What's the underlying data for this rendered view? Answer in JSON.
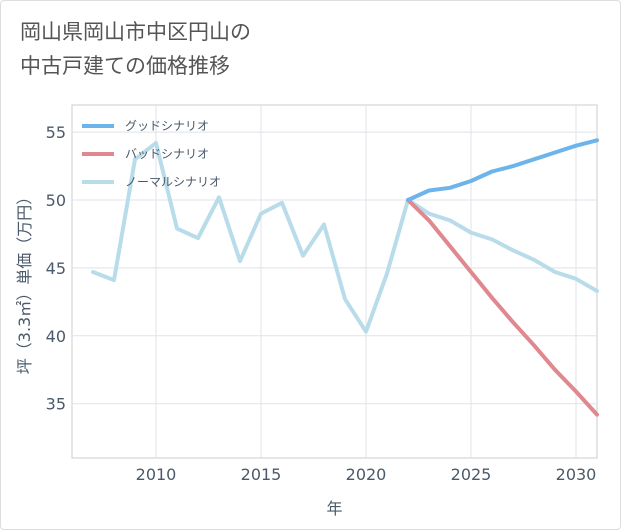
{
  "title": "岡山県岡山市中区円山の\n中古戸建ての価格推移",
  "chart_data": {
    "type": "line",
    "xlabel": "年",
    "ylabel": "坪（3.3㎡）単価（万円）",
    "xlim": [
      2006,
      2031
    ],
    "ylim": [
      31,
      57
    ],
    "x_ticks": [
      2010,
      2015,
      2020,
      2025,
      2030
    ],
    "y_ticks": [
      35,
      40,
      45,
      50,
      55
    ],
    "grid": true,
    "legend_position": "top-left",
    "series": [
      {
        "name": "グッドシナリオ",
        "color": "#6cb4ea",
        "x": [
          2022,
          2023,
          2024,
          2025,
          2026,
          2027,
          2028,
          2029,
          2030,
          2031
        ],
        "y": [
          50.0,
          50.7,
          50.9,
          51.4,
          52.1,
          52.5,
          53.0,
          53.5,
          54.0,
          54.4
        ]
      },
      {
        "name": "バッドシナリオ",
        "color": "#e0888f",
        "x": [
          2022,
          2023,
          2024,
          2025,
          2026,
          2027,
          2028,
          2029,
          2030,
          2031
        ],
        "y": [
          50.0,
          48.5,
          46.6,
          44.7,
          42.8,
          41.0,
          39.3,
          37.5,
          35.9,
          34.2
        ]
      },
      {
        "name": "ノーマルシナリオ",
        "color": "#b9dcea",
        "x": [
          2007,
          2008,
          2009,
          2010,
          2011,
          2012,
          2013,
          2014,
          2015,
          2016,
          2017,
          2018,
          2019,
          2020,
          2021,
          2022,
          2023,
          2024,
          2025,
          2026,
          2027,
          2028,
          2029,
          2030,
          2031
        ],
        "y": [
          44.7,
          44.1,
          53.0,
          54.2,
          47.9,
          47.2,
          50.2,
          45.5,
          49.0,
          49.8,
          45.9,
          48.2,
          42.7,
          40.3,
          44.6,
          50.0,
          49.0,
          48.5,
          47.6,
          47.1,
          46.3,
          45.6,
          44.7,
          44.2,
          43.3
        ]
      }
    ]
  }
}
